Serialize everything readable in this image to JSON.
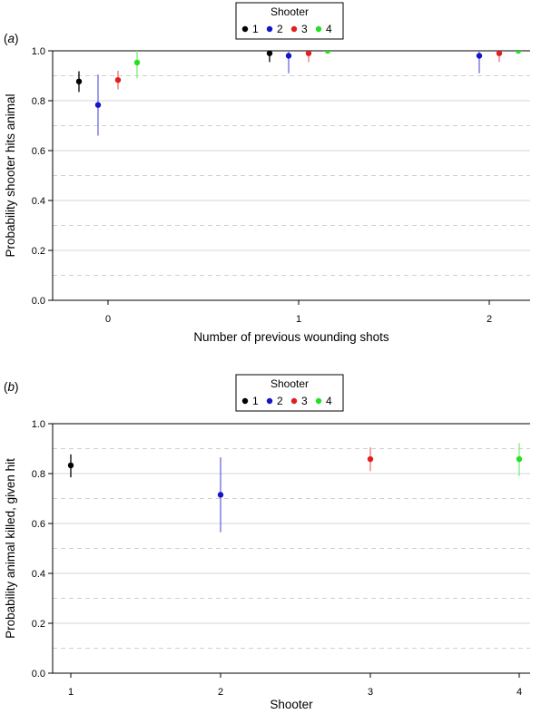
{
  "chart_data": [
    {
      "type": "scatter",
      "panel_label": "(a)",
      "title": "",
      "xlabel": "Number of previous wounding shots",
      "ylabel": "Probability shooter hits animal",
      "categories": [
        "0",
        "1",
        "2"
      ],
      "ylim": [
        0,
        1.0
      ],
      "yticks": [
        "0.0",
        "0.2",
        "0.4",
        "0.6",
        "0.8",
        "1.0"
      ],
      "grid": "horizontal",
      "legend": {
        "title": "Shooter",
        "placement": "top-center",
        "entries": [
          "1",
          "2",
          "3",
          "4"
        ]
      },
      "series": [
        {
          "name": "1",
          "color": "#000000",
          "bar_color": "#000000",
          "x": [
            "0",
            "1"
          ],
          "values": [
            0.877,
            0.99
          ],
          "lower": [
            0.835,
            0.955
          ],
          "upper": [
            0.918,
            1.0
          ]
        },
        {
          "name": "2",
          "color": "#1515c8",
          "bar_color": "#6a6ae8",
          "x": [
            "0",
            "1",
            "2"
          ],
          "values": [
            0.783,
            0.98,
            0.98
          ],
          "lower": [
            0.66,
            0.91,
            0.91
          ],
          "upper": [
            0.905,
            1.0,
            1.0
          ]
        },
        {
          "name": "3",
          "color": "#e01f1f",
          "bar_color": "#f07070",
          "x": [
            "0",
            "1",
            "2"
          ],
          "values": [
            0.883,
            0.99,
            0.99
          ],
          "lower": [
            0.845,
            0.955,
            0.955
          ],
          "upper": [
            0.92,
            1.0,
            1.0
          ]
        },
        {
          "name": "4",
          "color": "#22e022",
          "bar_color": "#7aee7a",
          "x": [
            "0",
            "1",
            "2"
          ],
          "values": [
            0.953,
            1.0,
            1.0
          ],
          "lower": [
            0.89,
            0.995,
            0.995
          ],
          "upper": [
            1.0,
            1.0,
            1.0
          ]
        }
      ]
    },
    {
      "type": "scatter",
      "panel_label": "(b)",
      "title": "",
      "xlabel": "Shooter",
      "ylabel": "Probability animal killed, given hit",
      "categories": [
        "1",
        "2",
        "3",
        "4"
      ],
      "ylim": [
        0,
        1.0
      ],
      "yticks": [
        "0.0",
        "0.2",
        "0.4",
        "0.6",
        "0.8",
        "1.0"
      ],
      "grid": "horizontal",
      "legend": {
        "title": "Shooter",
        "placement": "top-center",
        "entries": [
          "1",
          "2",
          "3",
          "4"
        ]
      },
      "series": [
        {
          "name": "1",
          "color": "#000000",
          "bar_color": "#000000",
          "x": [
            "1"
          ],
          "values": [
            0.833
          ],
          "lower": [
            0.785
          ],
          "upper": [
            0.877
          ]
        },
        {
          "name": "2",
          "color": "#1515c8",
          "bar_color": "#6a6ae8",
          "x": [
            "2"
          ],
          "values": [
            0.715
          ],
          "lower": [
            0.565
          ],
          "upper": [
            0.865
          ]
        },
        {
          "name": "3",
          "color": "#e01f1f",
          "bar_color": "#f07070",
          "x": [
            "3"
          ],
          "values": [
            0.858
          ],
          "lower": [
            0.81
          ],
          "upper": [
            0.905
          ]
        },
        {
          "name": "4",
          "color": "#22e022",
          "bar_color": "#7aee7a",
          "x": [
            "4"
          ],
          "values": [
            0.858
          ],
          "lower": [
            0.79
          ],
          "upper": [
            0.922
          ]
        }
      ]
    }
  ]
}
